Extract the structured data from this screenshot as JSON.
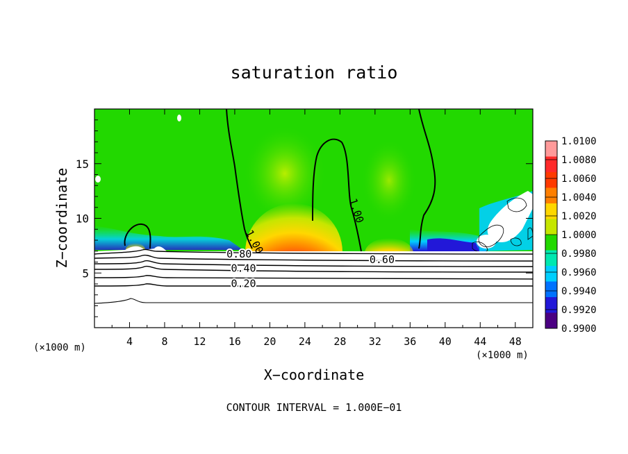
{
  "chart_data": {
    "type": "heatmap",
    "title": "saturation ratio",
    "xlabel": "X−coordinate",
    "ylabel": "Z−coordinate",
    "x_unit_label": "(×1000 m)",
    "y_unit_label": "(×1000 m)",
    "xlim": [
      0,
      50
    ],
    "ylim": [
      0,
      20
    ],
    "x_ticks": [
      4,
      8,
      12,
      16,
      20,
      24,
      28,
      32,
      36,
      40,
      44,
      48
    ],
    "y_ticks": [
      5,
      10,
      15
    ],
    "footnote": "CONTOUR INTERVAL = 1.000E−01",
    "colorbar": {
      "labels": [
        "1.0100",
        "1.0080",
        "1.0060",
        "1.0040",
        "1.0020",
        "1.0000",
        "0.9980",
        "0.9960",
        "0.9940",
        "0.9920",
        "0.9900"
      ],
      "colors": [
        "#ff9a9a",
        "#ff2a2a",
        "#ff3a00",
        "#ff7f00",
        "#ffd700",
        "#c6e600",
        "#22d800",
        "#00e8b0",
        "#00cfff",
        "#0072ff",
        "#2218d8",
        "#4b0082"
      ]
    },
    "contour_labels": [
      {
        "text": "1.00",
        "x": 17.9,
        "z": 7.7
      },
      {
        "text": "1.00",
        "x": 29.5,
        "z": 10.6
      },
      {
        "text": "0.80",
        "x": 16.5,
        "z": 6.4
      },
      {
        "text": "0.60",
        "x": 32.8,
        "z": 5.9
      },
      {
        "text": "0.40",
        "x": 17.0,
        "z": 5.1
      },
      {
        "text": "0.20",
        "x": 17.0,
        "z": 3.7
      }
    ]
  }
}
